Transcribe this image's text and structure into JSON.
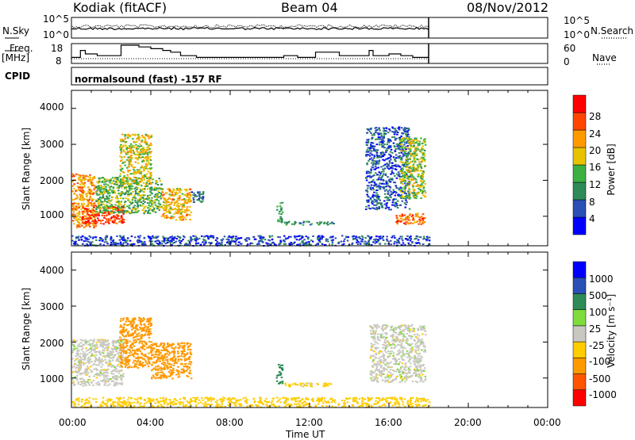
{
  "header": {
    "radar": "Kodiak (fitACF)",
    "beam": "Beam 04",
    "date": "08/Nov/2012"
  },
  "top_panels": {
    "nsky_label": "N.Sky",
    "nsearch_label": "N.Search",
    "n_ticks": [
      "10^5",
      "10^0"
    ],
    "n_ticks_right": [
      "10^5",
      "10^0"
    ],
    "freq_label_1": "Freq.",
    "freq_label_2": "[MHz]",
    "freq_ticks": [
      "18",
      "8"
    ],
    "nave_label": "Nave",
    "nave_ticks": [
      "60",
      "0"
    ],
    "cpid_label": "CPID",
    "cpid_text": "normalsound (fast) -157 RF"
  },
  "power_panel": {
    "ylabel": "Slant Range [km]",
    "yticks": [
      "4000",
      "3000",
      "2000",
      "1000"
    ],
    "colorbar_label": "Power [dB]",
    "colorbar_ticks": [
      "28",
      "24",
      "20",
      "16",
      "12",
      "8",
      "4"
    ],
    "colors": [
      "#0000ff",
      "#2a4fb5",
      "#2e8b57",
      "#3cb043",
      "#e6c200",
      "#ff9900",
      "#ff4500",
      "#ff0000"
    ]
  },
  "velocity_panel": {
    "ylabel": "Slant Range [km]",
    "yticks": [
      "4000",
      "3000",
      "2000",
      "1000"
    ],
    "colorbar_label": "Velocity [m s⁻¹]",
    "colorbar_ticks": [
      "1000",
      "500",
      "100",
      "25",
      "-25",
      "-100",
      "-500",
      "-1000"
    ],
    "colors": [
      "#ff0000",
      "#ff5500",
      "#ff9900",
      "#ffcc00",
      "#c8c8c0",
      "#7fdc3a",
      "#2e8b57",
      "#2a4fb5",
      "#0000ff"
    ]
  },
  "xaxis": {
    "ticks": [
      "00:00",
      "04:00",
      "08:00",
      "12:00",
      "16:00",
      "20:00",
      "00:00"
    ],
    "label": "Time UT"
  },
  "chart_data": {
    "type": "heatmap",
    "title": "Kodiak (fitACF)",
    "xlabel": "Time UT",
    "ylabel": "Slant Range [km]",
    "xlim": [
      0,
      24
    ],
    "ylim": [
      180,
      4500
    ],
    "data_end_hour": 18,
    "freq_profile": {
      "hours": [
        0,
        0.45,
        0.7,
        1.3,
        2.4,
        2.5,
        3.4,
        4.0,
        4.6,
        5.0,
        5.5,
        6.3,
        7.0,
        10.2,
        10.7,
        11.4,
        11.8,
        12.3,
        13.5,
        14.2,
        15.0,
        15.2,
        15.6,
        16.0,
        16.6,
        17.2,
        18.0
      ],
      "mhz": [
        11,
        15,
        13,
        12,
        12,
        18,
        17,
        16,
        15,
        14,
        12,
        11,
        11,
        11,
        12,
        11,
        11,
        14,
        12,
        12,
        15,
        12,
        12,
        13,
        12,
        11,
        11
      ]
    },
    "power_regions": [
      {
        "t0": 0.0,
        "t1": 1.2,
        "r0": 700,
        "r1": 2200,
        "db": 22
      },
      {
        "t0": 0.5,
        "t1": 2.6,
        "r0": 800,
        "r1": 1300,
        "db": 28
      },
      {
        "t0": 1.2,
        "t1": 4.5,
        "r0": 1100,
        "r1": 2100,
        "db": 14
      },
      {
        "t0": 2.4,
        "t1": 4.0,
        "r0": 1900,
        "r1": 3300,
        "db": 18
      },
      {
        "t0": 4.5,
        "t1": 6.0,
        "r0": 900,
        "r1": 1800,
        "db": 20
      },
      {
        "t0": 6.0,
        "t1": 6.6,
        "r0": 1400,
        "r1": 1700,
        "db": 8
      },
      {
        "t0": 10.3,
        "t1": 10.6,
        "r0": 850,
        "r1": 1400,
        "db": 12
      },
      {
        "t0": 10.7,
        "t1": 13.2,
        "r0": 780,
        "r1": 880,
        "db": 10
      },
      {
        "t0": 14.8,
        "t1": 17.0,
        "r0": 1200,
        "r1": 3500,
        "db": 6
      },
      {
        "t0": 16.5,
        "t1": 17.8,
        "r0": 1500,
        "r1": 3200,
        "db": 16
      },
      {
        "t0": 16.3,
        "t1": 17.8,
        "r0": 800,
        "r1": 1100,
        "db": 24
      },
      {
        "t0": 0.0,
        "t1": 18.0,
        "r0": 200,
        "r1": 480,
        "db": 5
      }
    ],
    "velocity_regions": [
      {
        "t0": 0.0,
        "t1": 2.6,
        "r0": 800,
        "r1": 2100,
        "v": 0
      },
      {
        "t0": 2.4,
        "t1": 4.0,
        "r0": 1300,
        "r1": 2700,
        "v": -150
      },
      {
        "t0": 4.0,
        "t1": 6.0,
        "r0": 1000,
        "r1": 2000,
        "v": -150
      },
      {
        "t0": 10.3,
        "t1": 10.6,
        "r0": 850,
        "r1": 1400,
        "v": 200
      },
      {
        "t0": 10.7,
        "t1": 13.2,
        "r0": 780,
        "r1": 880,
        "v": -50
      },
      {
        "t0": 15.0,
        "t1": 17.8,
        "r0": 900,
        "r1": 2500,
        "v": 0
      },
      {
        "t0": 0.0,
        "t1": 18.0,
        "r0": 200,
        "r1": 480,
        "v": -60
      }
    ]
  }
}
